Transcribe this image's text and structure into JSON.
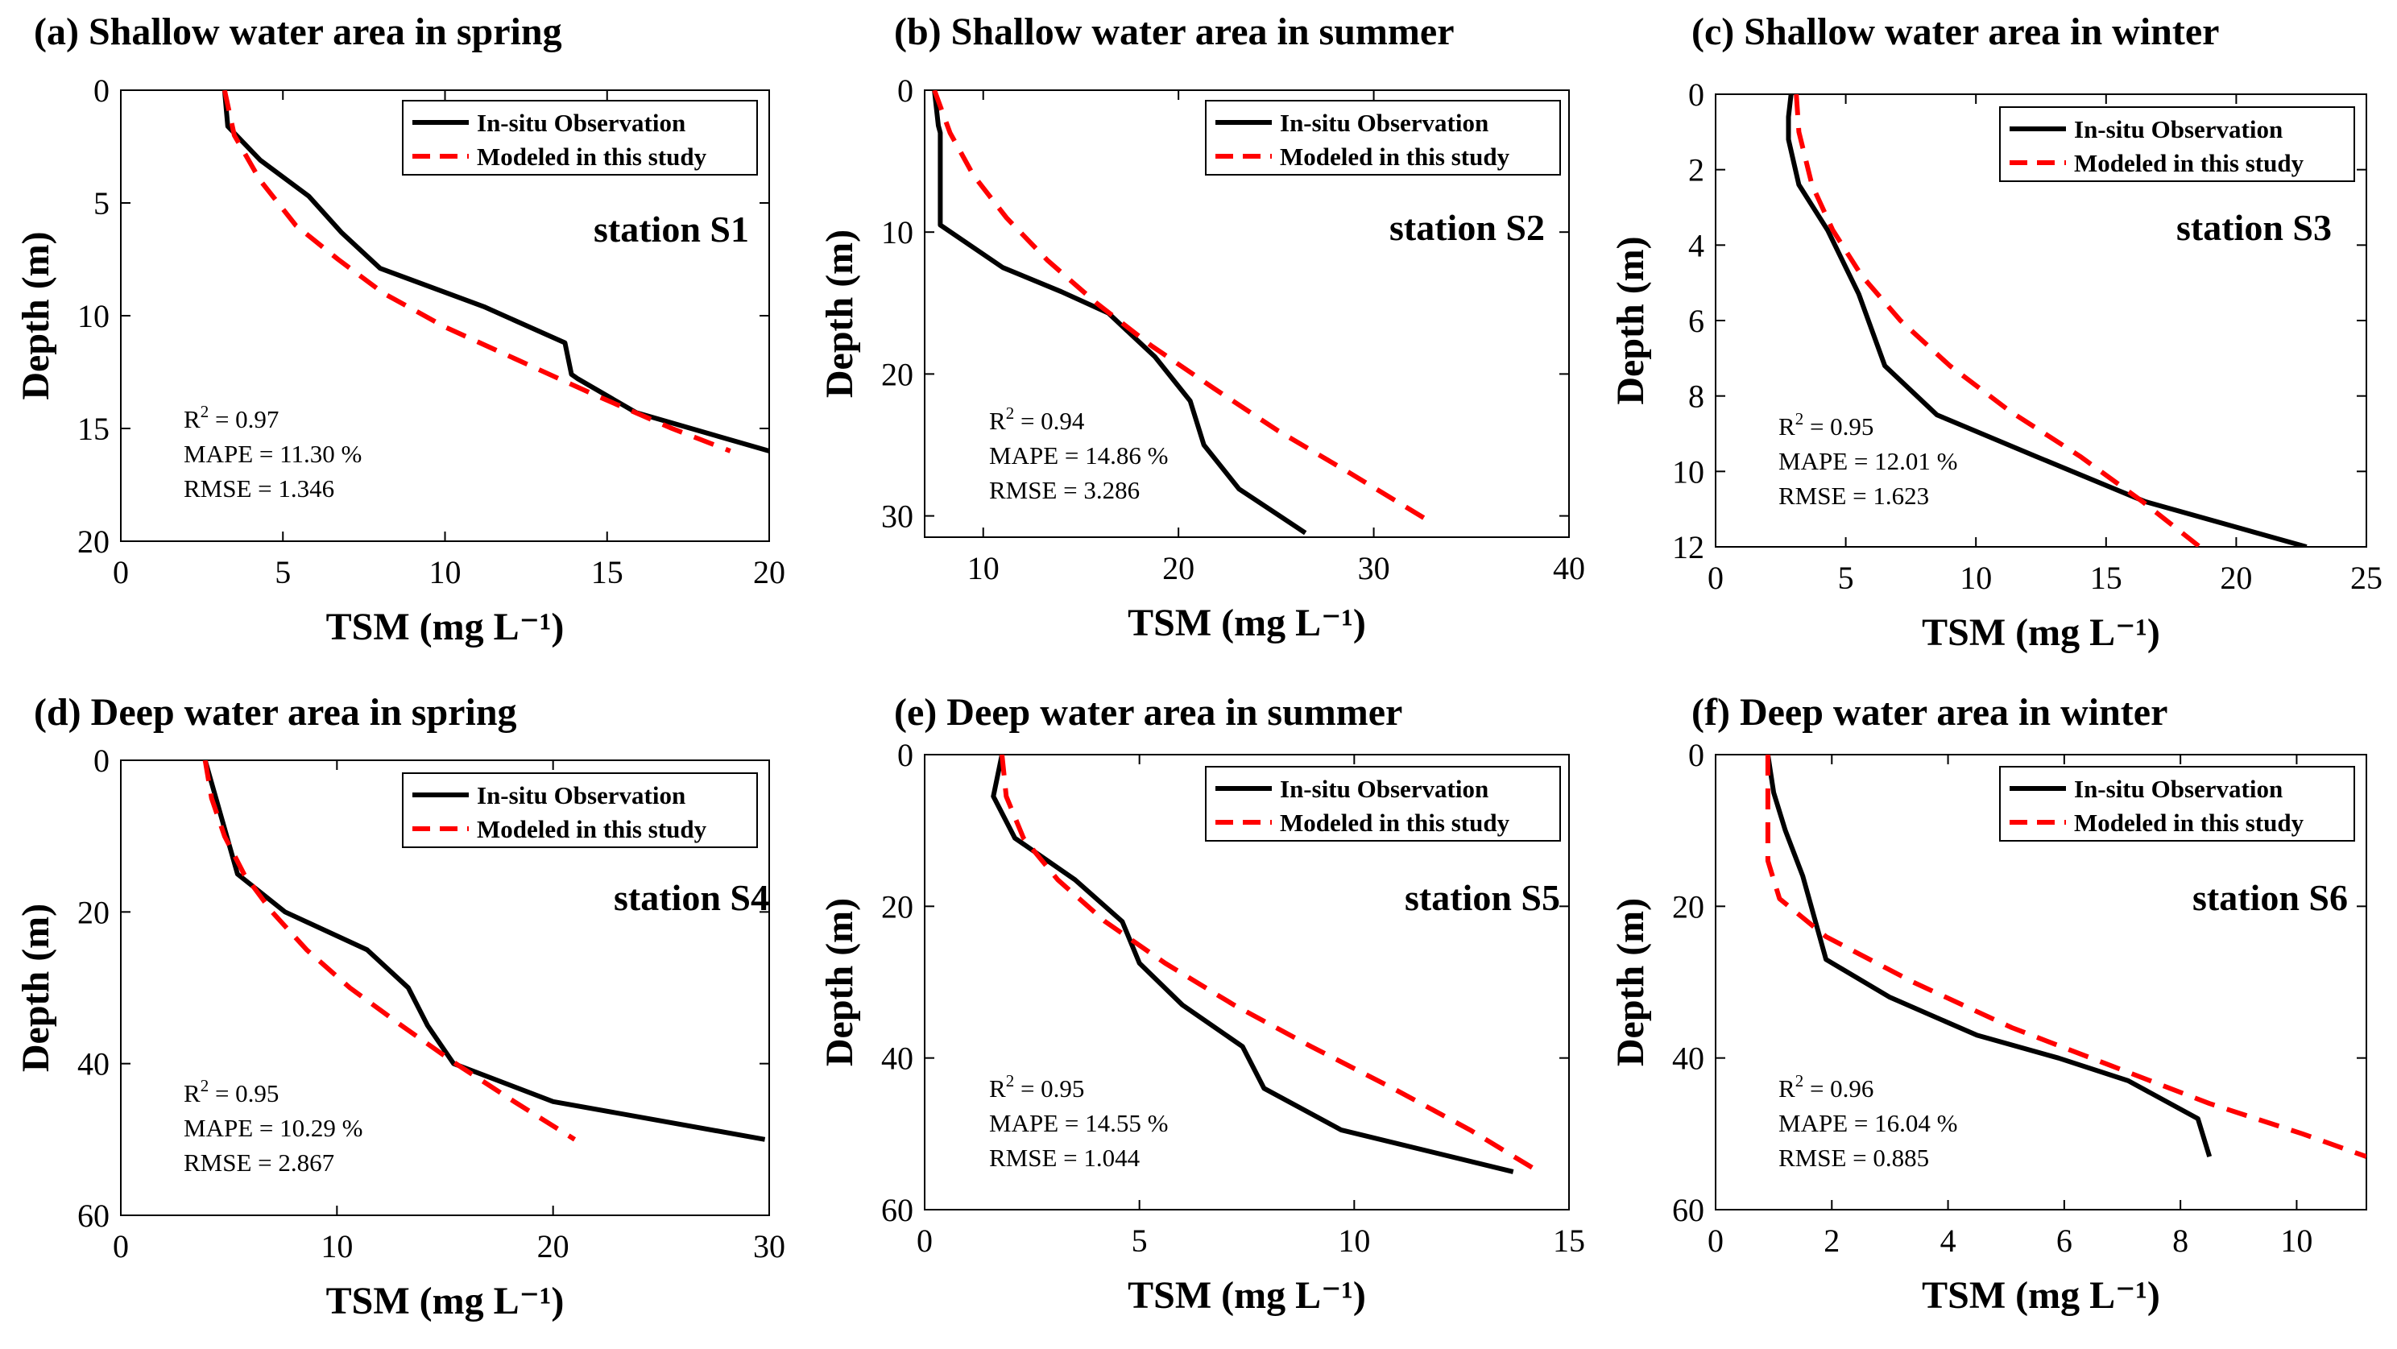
{
  "chart_data": [
    {
      "type": "line",
      "title": "(a) Shallow water area in spring",
      "station": "station S1",
      "xlabel": "TSM (mg L⁻¹)",
      "ylabel": "Depth (m)",
      "xlim": [
        0,
        20
      ],
      "ylim": [
        0,
        20
      ],
      "xticks": [
        "0",
        "5",
        "10",
        "15",
        "20"
      ],
      "yticks": [
        "0",
        "5",
        "10",
        "15",
        "20"
      ],
      "stats": {
        "r2_label": "R",
        "r2_sup": "2",
        "r2_value": " = 0.97",
        "mape": "MAPE = 11.30 %",
        "rmse": "RMSE = 1.346"
      },
      "legend": [
        "In-situ Observation",
        "Modeled in this study"
      ],
      "series": [
        {
          "name": "In-situ Observation",
          "color": "#000000",
          "dash": false,
          "x": [
            3.2,
            3.3,
            4.3,
            5.8,
            6.8,
            8.0,
            11.2,
            13.7,
            13.9,
            14.1,
            15.9,
            20.0
          ],
          "y": [
            0,
            1.6,
            3.1,
            4.7,
            6.3,
            7.9,
            9.6,
            11.2,
            12.6,
            12.8,
            14.3,
            16.0
          ]
        },
        {
          "name": "Modeled in this study",
          "color": "#ff0000",
          "dash": true,
          "x": [
            3.2,
            3.5,
            4.3,
            5.4,
            6.7,
            8.1,
            10.0,
            12.3,
            14.6,
            17.0,
            18.8
          ],
          "y": [
            0,
            2,
            4,
            6,
            7.5,
            9,
            10.5,
            12,
            13.5,
            15,
            16.0
          ]
        }
      ]
    },
    {
      "type": "line",
      "title": "(b) Shallow water area in summer",
      "station": "station S2",
      "xlabel": "TSM (mg L⁻¹)",
      "ylabel": "Depth (m)",
      "xlim": [
        7,
        40
      ],
      "ylim": [
        0,
        31.5
      ],
      "xticks": [
        "10",
        "20",
        "30",
        "40"
      ],
      "yticks": [
        "0",
        "10",
        "20",
        "30"
      ],
      "stats": {
        "r2_label": "R",
        "r2_sup": "2",
        "r2_value": " = 0.94",
        "mape": "MAPE = 14.86 %",
        "rmse": "RMSE = 3.286"
      },
      "legend": [
        "In-situ Observation",
        "Modeled in this study"
      ],
      "series": [
        {
          "name": "In-situ Observation",
          "color": "#000000",
          "dash": false,
          "x": [
            7.5,
            7.7,
            7.8,
            7.8,
            11.0,
            14.0,
            16.4,
            18.8,
            20.6,
            21.3,
            23.1,
            26.5
          ],
          "y": [
            0,
            2.5,
            3.0,
            9.5,
            12.5,
            14.2,
            15.7,
            18.8,
            21.9,
            25.0,
            28.1,
            31.2
          ]
        },
        {
          "name": "Modeled in this study",
          "color": "#ff0000",
          "dash": true,
          "x": [
            7.5,
            8.3,
            9.5,
            11.2,
            13.3,
            15.8,
            18.6,
            21.8,
            25.1,
            28.8,
            33.0
          ],
          "y": [
            0,
            3,
            6,
            9,
            12,
            15,
            18,
            21,
            24,
            27,
            30.5
          ]
        }
      ]
    },
    {
      "type": "line",
      "title": "(c) Shallow water area in winter",
      "station": "station S3",
      "xlabel": "TSM (mg L⁻¹)",
      "ylabel": "Depth (m)",
      "xlim": [
        0,
        25
      ],
      "ylim": [
        0,
        12
      ],
      "xticks": [
        "0",
        "5",
        "10",
        "15",
        "20",
        "25"
      ],
      "yticks": [
        "0",
        "2",
        "4",
        "6",
        "8",
        "10",
        "12"
      ],
      "stats": {
        "r2_label": "R",
        "r2_sup": "2",
        "r2_value": " = 0.95",
        "mape": "MAPE = 12.01 %",
        "rmse": "RMSE = 1.623"
      },
      "legend": [
        "In-situ Observation",
        "Modeled in this study"
      ],
      "series": [
        {
          "name": "In-situ Observation",
          "color": "#000000",
          "dash": false,
          "x": [
            2.9,
            2.8,
            2.8,
            3.2,
            4.3,
            5.5,
            6.5,
            8.5,
            12.3,
            16.5,
            22.7
          ],
          "y": [
            0,
            0.6,
            1.2,
            2.4,
            3.6,
            5.3,
            7.2,
            8.5,
            9.6,
            10.8,
            12.0
          ]
        },
        {
          "name": "Modeled in this study",
          "color": "#ff0000",
          "dash": true,
          "x": [
            3.1,
            3.2,
            3.7,
            4.5,
            5.6,
            7.1,
            9.0,
            11.3,
            14.0,
            16.4,
            18.6
          ],
          "y": [
            0,
            1.0,
            2.4,
            3.6,
            4.8,
            6.0,
            7.2,
            8.4,
            9.6,
            10.8,
            12.0
          ]
        }
      ]
    },
    {
      "type": "line",
      "title": "(d) Deep water area in spring",
      "station": "station S4",
      "xlabel": "TSM (mg L⁻¹)",
      "ylabel": "Depth (m)",
      "xlim": [
        0,
        30
      ],
      "ylim": [
        0,
        60
      ],
      "xticks": [
        "0",
        "10",
        "20",
        "30"
      ],
      "yticks": [
        "0",
        "20",
        "40",
        "60"
      ],
      "stats": {
        "r2_label": "R",
        "r2_sup": "2",
        "r2_value": " = 0.95",
        "mape": "MAPE = 10.29 %",
        "rmse": "RMSE = 2.867"
      },
      "legend": [
        "In-situ Observation",
        "Modeled in this study"
      ],
      "series": [
        {
          "name": "In-situ Observation",
          "color": "#000000",
          "dash": false,
          "x": [
            3.9,
            4.4,
            5.4,
            7.6,
            11.4,
            13.3,
            14.2,
            15.4,
            20.0,
            29.8
          ],
          "y": [
            0,
            5,
            15,
            20,
            25,
            30,
            35,
            40,
            45,
            50
          ]
        },
        {
          "name": "Modeled in this study",
          "color": "#ff0000",
          "dash": true,
          "x": [
            3.9,
            4.2,
            4.8,
            5.7,
            7.0,
            8.6,
            10.6,
            13.0,
            15.5,
            18.2,
            21.0
          ],
          "y": [
            0,
            5,
            10,
            15,
            20,
            25,
            30,
            35,
            40,
            45,
            50
          ]
        }
      ]
    },
    {
      "type": "line",
      "title": "(e) Deep water area in summer",
      "station": "station S5",
      "xlabel": "TSM (mg L⁻¹)",
      "ylabel": "Depth (m)",
      "xlim": [
        0,
        15
      ],
      "ylim": [
        0,
        60
      ],
      "xticks": [
        "0",
        "5",
        "10",
        "15"
      ],
      "yticks": [
        "0",
        "20",
        "40",
        "60"
      ],
      "stats": {
        "r2_label": "R",
        "r2_sup": "2",
        "r2_value": " = 0.95",
        "mape": "MAPE = 14.55 %",
        "rmse": "RMSE = 1.044"
      },
      "legend": [
        "In-situ Observation",
        "Modeled in this study"
      ],
      "series": [
        {
          "name": "In-situ Observation",
          "color": "#000000",
          "dash": false,
          "x": [
            1.8,
            1.6,
            2.1,
            3.5,
            4.6,
            5.0,
            6.0,
            7.4,
            7.9,
            9.7,
            13.7
          ],
          "y": [
            0,
            5.5,
            11,
            16.5,
            22,
            27.5,
            33,
            38.5,
            44,
            49.5,
            55
          ]
        },
        {
          "name": "Modeled in this study",
          "color": "#ff0000",
          "dash": true,
          "x": [
            1.8,
            1.9,
            2.3,
            3.1,
            4.2,
            5.6,
            7.2,
            9.0,
            10.9,
            12.7,
            14.3
          ],
          "y": [
            0,
            5.5,
            11,
            16.5,
            22,
            27.5,
            33,
            38.5,
            44,
            49.5,
            55
          ]
        }
      ]
    },
    {
      "type": "line",
      "title": "(f) Deep water area in winter",
      "station": "station S6",
      "xlabel": "TSM (mg L⁻¹)",
      "ylabel": "Depth (m)",
      "xlim": [
        0,
        11.2
      ],
      "ylim": [
        0,
        60
      ],
      "xticks": [
        "0",
        "2",
        "4",
        "6",
        "8",
        "10"
      ],
      "yticks": [
        "0",
        "20",
        "40",
        "60"
      ],
      "stats": {
        "r2_label": "R",
        "r2_sup": "2",
        "r2_value": " = 0.96",
        "mape": "MAPE = 16.04 %",
        "rmse": "RMSE = 0.885"
      },
      "legend": [
        "In-situ Observation",
        "Modeled in this study"
      ],
      "series": [
        {
          "name": "In-situ Observation",
          "color": "#000000",
          "dash": false,
          "x": [
            0.9,
            1.0,
            1.2,
            1.5,
            1.9,
            3.0,
            4.5,
            5.9,
            7.1,
            8.3,
            8.5
          ],
          "y": [
            0,
            5,
            10,
            16,
            27,
            32,
            37,
            40,
            43,
            48,
            53
          ]
        },
        {
          "name": "Modeled in this study",
          "color": "#ff0000",
          "dash": true,
          "x": [
            0.9,
            0.9,
            0.9,
            1.1,
            1.9,
            3.4,
            5.1,
            6.8,
            8.5,
            10.1,
            11.2
          ],
          "y": [
            0,
            5,
            14,
            19,
            24,
            30,
            36,
            41,
            46,
            50,
            53
          ]
        }
      ]
    }
  ]
}
